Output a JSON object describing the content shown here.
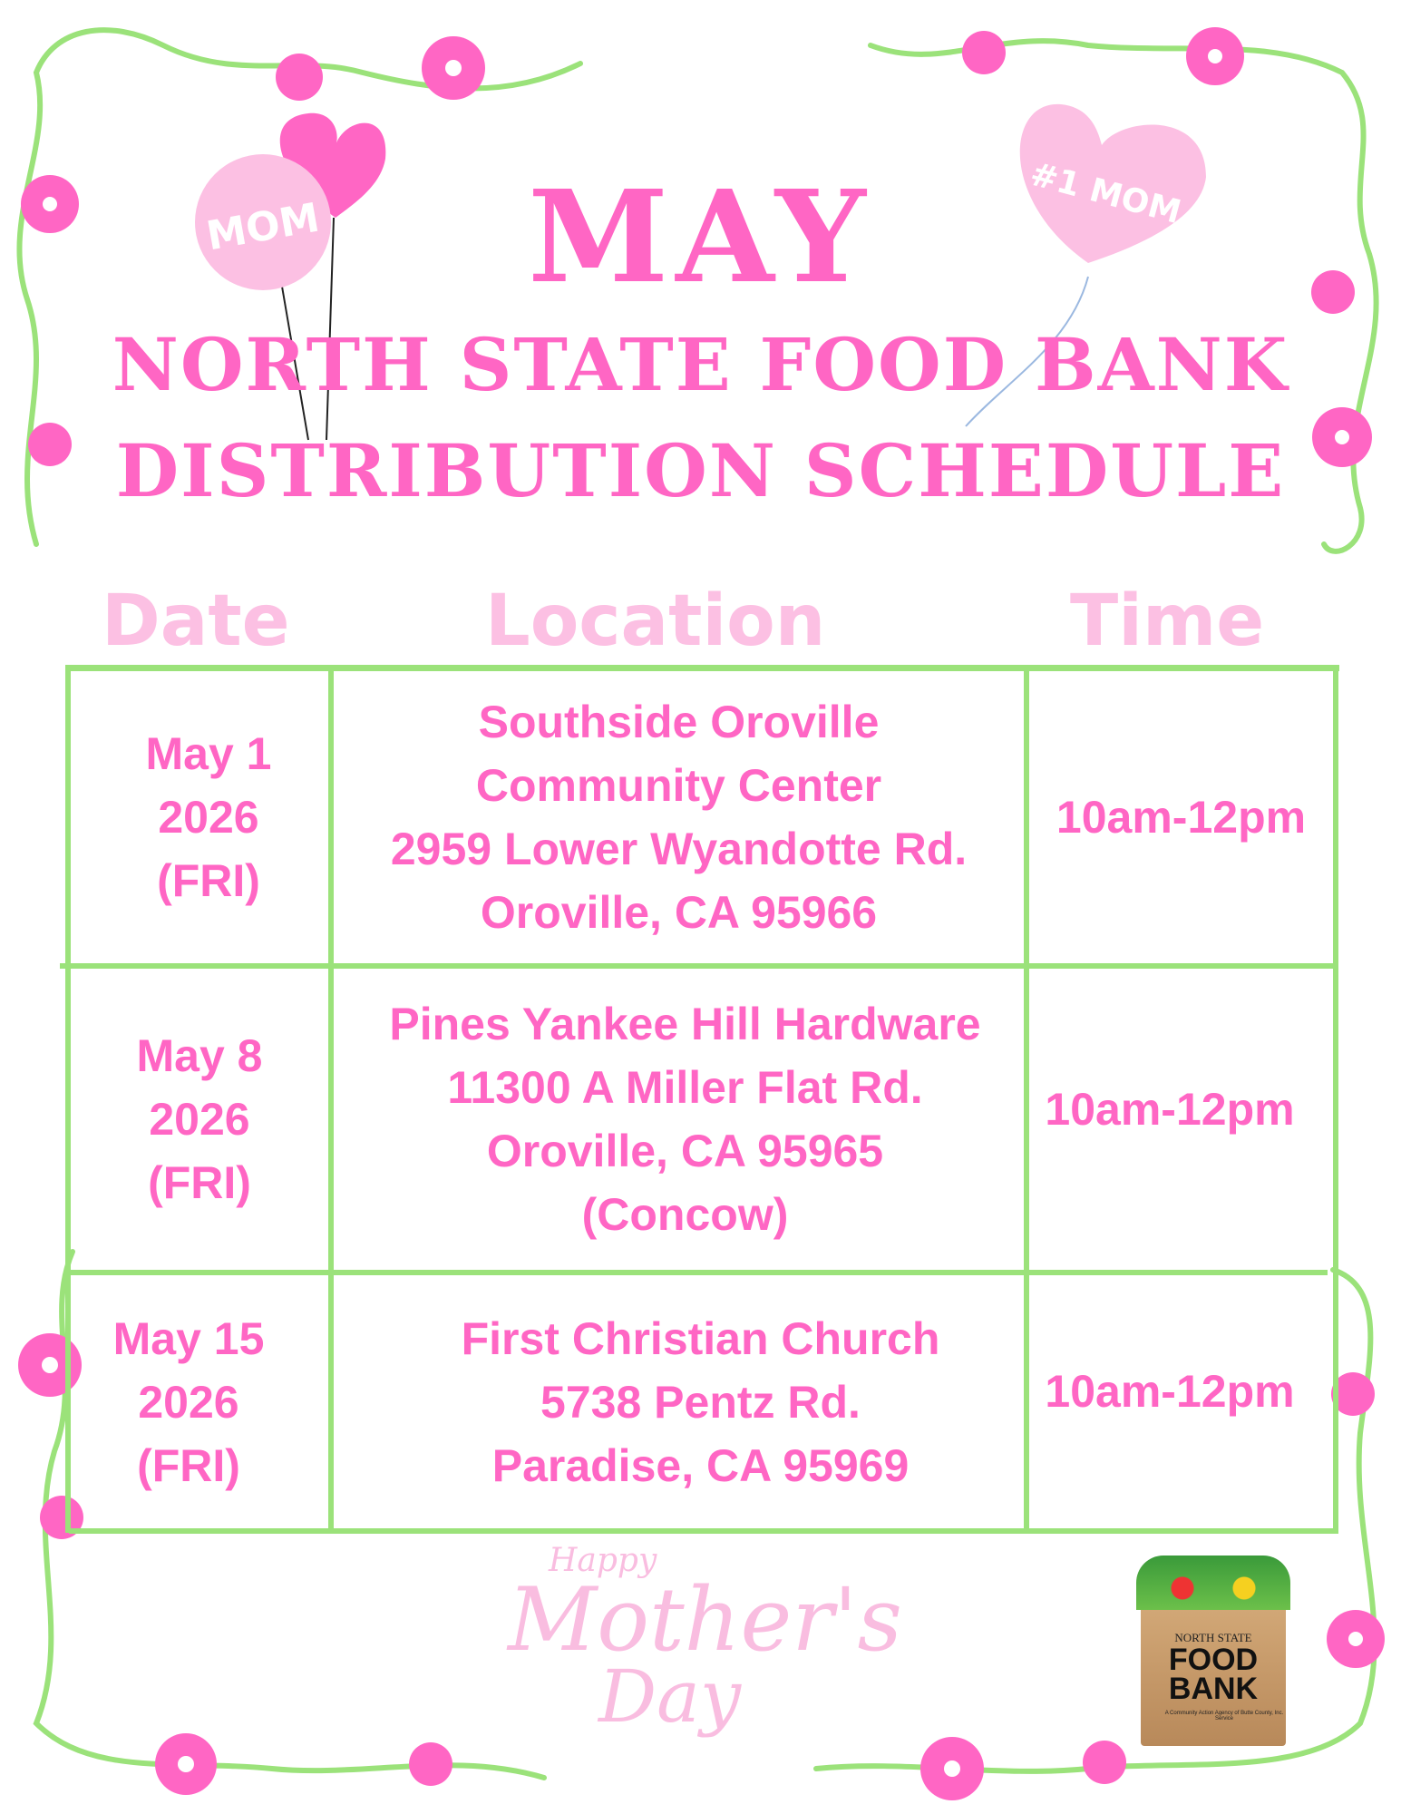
{
  "header": {
    "month": "MAY",
    "line1": "NORTH STATE FOOD BANK",
    "line2": "DISTRIBUTION SCHEDULE"
  },
  "balloons": {
    "left": "MOM",
    "right": "#1 MOM"
  },
  "columns": {
    "date": "Date",
    "location": "Location",
    "time": "Time"
  },
  "rows": [
    {
      "date": [
        "May 1",
        "2026",
        "(FRI)"
      ],
      "location": [
        "Southside Oroville",
        "Community Center",
        "2959 Lower Wyandotte Rd.",
        "Oroville, CA  95966"
      ],
      "time": "10am-12pm"
    },
    {
      "date": [
        "May 8",
        "2026",
        "(FRI)"
      ],
      "location": [
        "Pines Yankee Hill Hardware",
        "11300 A Miller Flat Rd.",
        "Oroville, CA  95965",
        "(Concow)"
      ],
      "time": "10am-12pm"
    },
    {
      "date": [
        "May 15",
        "2026",
        "(FRI)"
      ],
      "location": [
        "First Christian Church",
        "5738 Pentz Rd.",
        "Paradise, CA  95969"
      ],
      "time": "10am-12pm"
    }
  ],
  "footer": {
    "greeting_small": "Happy",
    "greeting_large": "Mother's",
    "greeting_day": "Day"
  },
  "logo": {
    "top": "NORTH STATE",
    "line1": "FOOD",
    "line2": "BANK",
    "tagline": "A Community Action Agency of Butte County, Inc. Service"
  },
  "colors": {
    "pink": "#ff66c4",
    "light_pink": "#fcc0e3",
    "green": "#9be27a"
  }
}
